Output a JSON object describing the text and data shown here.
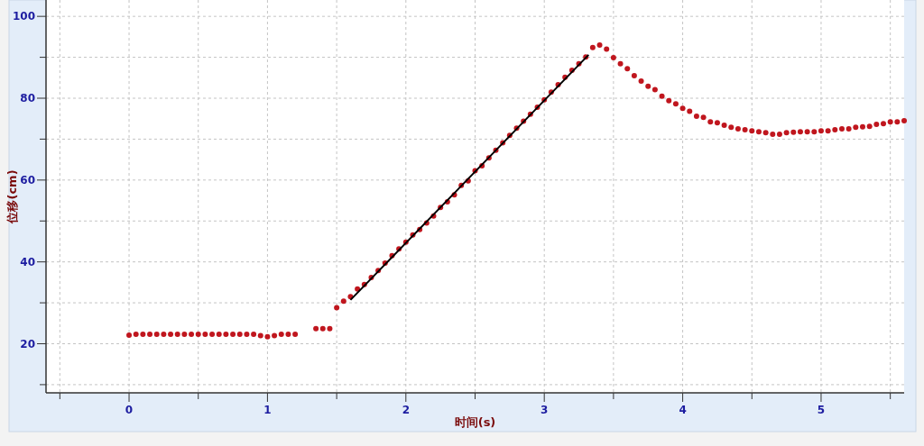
{
  "chart_data": {
    "type": "scatter",
    "xlabel": "时间(s)",
    "ylabel": "位移(cm)",
    "xlim": [
      -0.6,
      5.6
    ],
    "ylim": [
      8,
      104
    ],
    "xticks": [
      {
        "value": -0.5,
        "label": null
      },
      0,
      {
        "value": 0.5,
        "label": null
      },
      1,
      {
        "value": 1.5,
        "label": null
      },
      2,
      {
        "value": 2.5,
        "label": null
      },
      3,
      {
        "value": 3.5,
        "label": null
      },
      4,
      {
        "value": 4.5,
        "label": null
      },
      5,
      {
        "value": 5.5,
        "label": null
      }
    ],
    "yticks": [
      {
        "value": 10,
        "label": null
      },
      20,
      {
        "value": 30,
        "label": null
      },
      40,
      {
        "value": 50,
        "label": null
      },
      60,
      {
        "value": 70,
        "label": null
      },
      80,
      {
        "value": 90,
        "label": null
      },
      100
    ],
    "grid": true,
    "marker": "circle",
    "series": [
      {
        "color": "#c0161e",
        "x": [
          0,
          0.05,
          0.1,
          0.15,
          0.2,
          0.25,
          0.3,
          0.35,
          0.4,
          0.45,
          0.5,
          0.55,
          0.6,
          0.65,
          0.7,
          0.75,
          0.8,
          0.85,
          0.9,
          0.95,
          1.0,
          1.05,
          1.1,
          1.15,
          1.2,
          1.35,
          1.4,
          1.45,
          1.5,
          1.55,
          1.6,
          1.65,
          1.7,
          1.75,
          1.8,
          1.85,
          1.9,
          1.95,
          2.0,
          2.05,
          2.1,
          2.15,
          2.2,
          2.25,
          2.3,
          2.35,
          2.4,
          2.45,
          2.5,
          2.55,
          2.6,
          2.65,
          2.7,
          2.75,
          2.8,
          2.85,
          2.9,
          2.95,
          3.0,
          3.05,
          3.1,
          3.15,
          3.2,
          3.25,
          3.3,
          3.35,
          3.4,
          3.45,
          3.5,
          3.55,
          3.6,
          3.65,
          3.7,
          3.75,
          3.8,
          3.85,
          3.9,
          3.95,
          4.0,
          4.05,
          4.1,
          4.15,
          4.2,
          4.25,
          4.3,
          4.35,
          4.4,
          4.45,
          4.5,
          4.55,
          4.6,
          4.65,
          4.7,
          4.75,
          4.8,
          4.85,
          4.9,
          4.95,
          5.0,
          5.05,
          5.1,
          5.15,
          5.2,
          5.25,
          5.3,
          5.35,
          5.4,
          5.45,
          5.5,
          5.55,
          5.6
        ],
        "values": [
          22.1,
          22.3,
          22.3,
          22.3,
          22.3,
          22.3,
          22.3,
          22.3,
          22.3,
          22.3,
          22.3,
          22.3,
          22.3,
          22.3,
          22.3,
          22.3,
          22.3,
          22.3,
          22.3,
          22.0,
          21.7,
          22.0,
          22.3,
          22.3,
          22.3,
          23.7,
          23.7,
          23.7,
          28.8,
          30.4,
          31.5,
          33.4,
          34.5,
          36.2,
          37.9,
          39.7,
          41.5,
          43.2,
          44.8,
          46.6,
          47.9,
          49.5,
          51.2,
          53.3,
          54.7,
          56.4,
          58.7,
          59.8,
          62.3,
          63.5,
          65.4,
          67.3,
          69.1,
          70.9,
          72.7,
          74.4,
          76.1,
          77.8,
          79.6,
          81.5,
          83.3,
          85.1,
          86.8,
          88.4,
          90.1,
          92.4,
          93.0,
          92.0,
          89.9,
          88.4,
          87.2,
          85.5,
          84.2,
          82.9,
          82.1,
          80.5,
          79.4,
          78.6,
          77.5,
          76.8,
          75.6,
          75.3,
          74.2,
          74.0,
          73.4,
          72.9,
          72.5,
          72.3,
          72.0,
          71.8,
          71.6,
          71.2,
          71.2,
          71.6,
          71.7,
          71.8,
          71.8,
          71.8,
          72.0,
          72.0,
          72.3,
          72.5,
          72.5,
          72.9,
          73.0,
          73.1,
          73.6,
          73.8,
          74.2,
          74.2,
          74.5
        ]
      },
      {
        "type": "line",
        "marker": "none",
        "color": "#000000",
        "x": [
          1.6,
          3.32
        ],
        "values": [
          30.7,
          90.6
        ]
      }
    ]
  }
}
